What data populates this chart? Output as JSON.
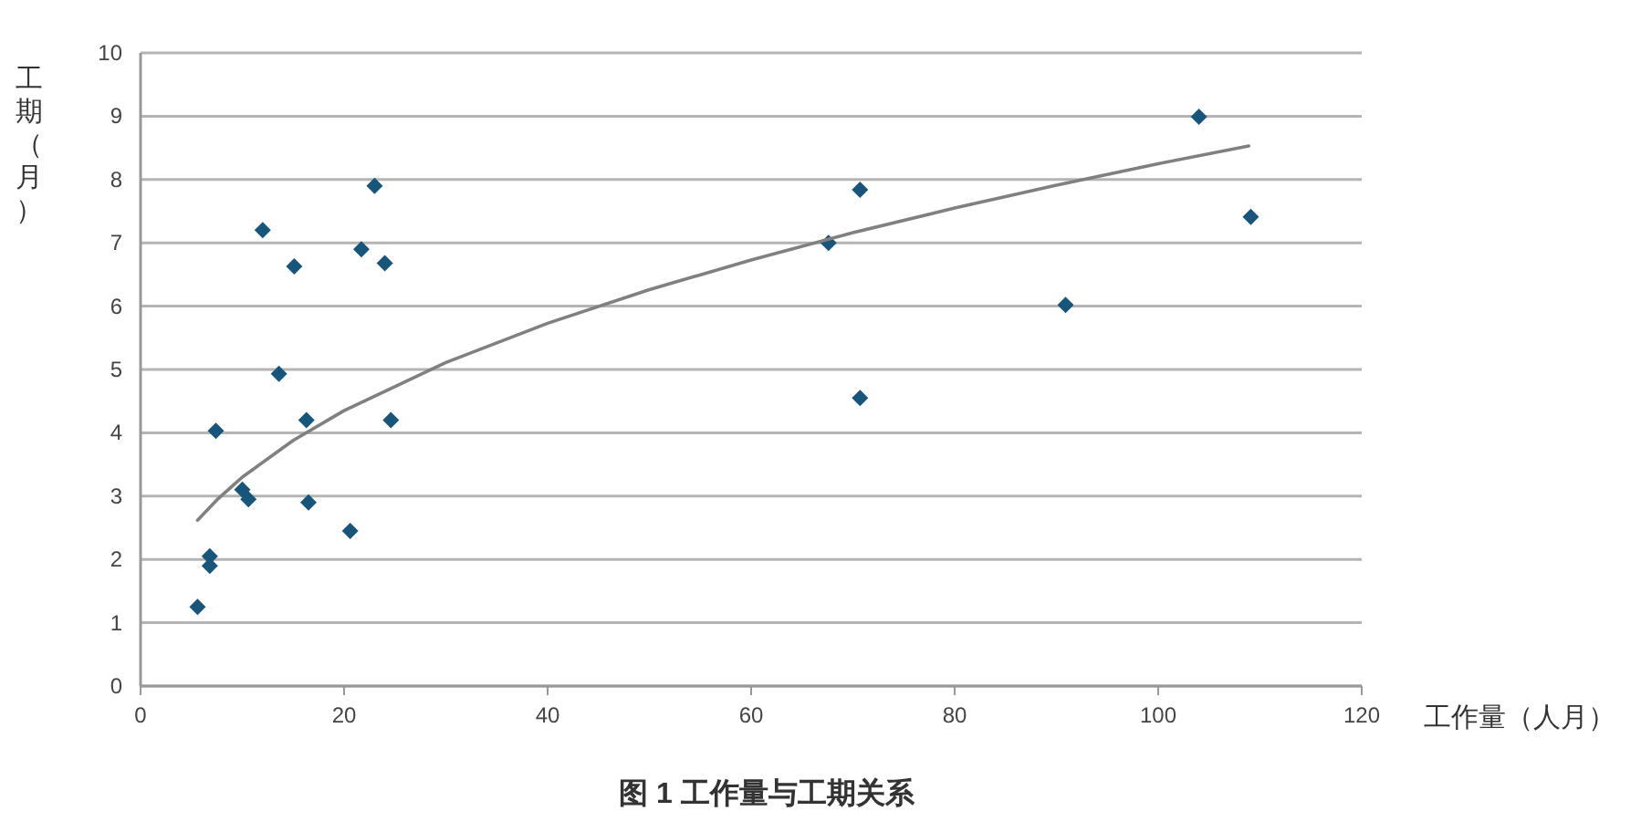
{
  "chart_data": {
    "type": "scatter",
    "title": "图 1   工作量与工期关系",
    "xlabel": "工作量（人月）",
    "ylabel": "工期（月）",
    "xlim": [
      0,
      120
    ],
    "xticks": [
      0,
      20,
      40,
      60,
      80,
      100,
      120
    ],
    "ylim": [
      0,
      10
    ],
    "yticks": [
      0,
      1,
      2,
      3,
      4,
      5,
      6,
      7,
      8,
      9,
      10
    ],
    "grid": "y",
    "marker": "diamond",
    "series": [
      {
        "color": "#17557a",
        "x": [
          5.6,
          6.8,
          6.8,
          7.4,
          10.0,
          10.6,
          12.0,
          13.6,
          15.1,
          16.3,
          16.5,
          20.6,
          21.7,
          23.0,
          24.0,
          24.6,
          67.6,
          70.7,
          70.7,
          90.9,
          104.0,
          109.1
        ],
        "values": [
          1.25,
          2.05,
          1.9,
          4.03,
          3.1,
          2.95,
          7.2,
          4.93,
          6.63,
          4.2,
          2.9,
          2.45,
          6.9,
          7.9,
          6.68,
          4.2,
          7.0,
          7.84,
          4.55,
          6.02,
          8.99,
          7.41
        ]
      },
      {
        "type": "line",
        "color": "#808080",
        "marker": "none",
        "x": [
          5.6,
          7.5,
          10,
          15,
          20,
          30,
          40,
          50,
          60,
          70,
          80,
          90,
          100,
          108.9
        ],
        "values": [
          2.62,
          2.94,
          3.3,
          3.88,
          4.35,
          5.11,
          5.73,
          6.26,
          6.73,
          7.16,
          7.55,
          7.91,
          8.25,
          8.53
        ]
      }
    ]
  }
}
